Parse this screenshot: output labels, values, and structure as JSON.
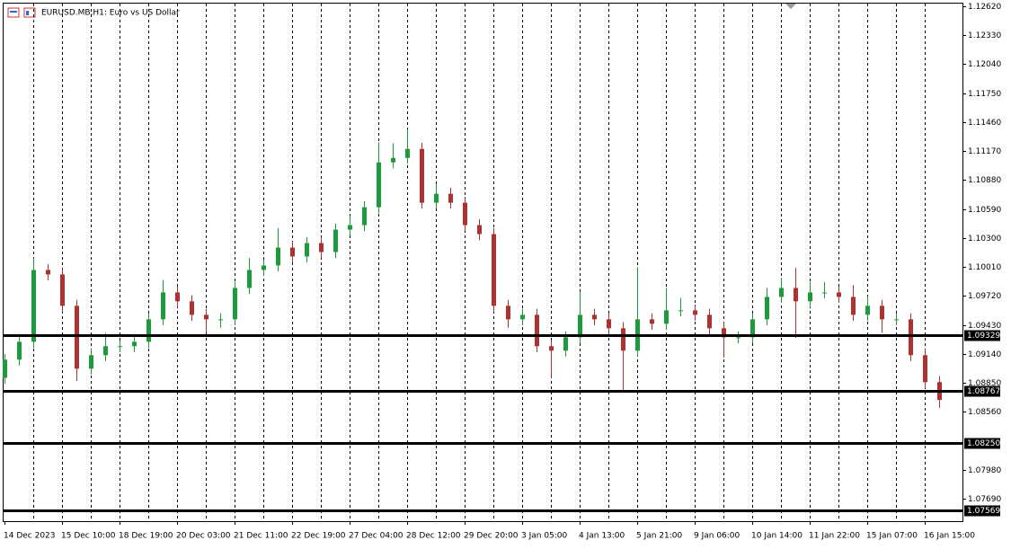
{
  "chart_data": {
    "type": "candlestick",
    "title": "EURUSD.MB,H1:  Euro vs US Dollar",
    "categories": [
      "14 Dec 2023",
      null,
      null,
      null,
      "15 Dec 10:00",
      null,
      null,
      null,
      "18 Dec 19:00",
      null,
      null,
      null,
      "20 Dec 03:00",
      null,
      null,
      null,
      "21 Dec 11:00",
      null,
      null,
      null,
      "22 Dec 19:00",
      null,
      null,
      null,
      "27 Dec 04:00",
      null,
      null,
      null,
      "28 Dec 12:00",
      null,
      null,
      null,
      "29 Dec 20:00",
      null,
      null,
      null,
      "3 Jan 05:00",
      null,
      null,
      null,
      "4 Jan 13:00",
      null,
      null,
      null,
      "5 Jan 21:00",
      null,
      null,
      null,
      "9 Jan 06:00",
      null,
      null,
      null,
      "10 Jan 14:00",
      null,
      null,
      null,
      "11 Jan 22:00",
      null,
      null,
      null,
      "15 Jan 07:00",
      null,
      null,
      null,
      "16 Jan 15:00",
      null
    ],
    "open": [
      1.089,
      1.09082,
      1.09261,
      1.0998,
      1.09935,
      1.09621,
      1.08992,
      1.09127,
      1.09217,
      1.09217,
      1.09261,
      1.09486,
      1.09755,
      1.09666,
      1.09531,
      1.09486,
      1.09486,
      1.098,
      1.0998,
      1.10025,
      1.10204,
      1.10115,
      1.10249,
      1.10159,
      1.10384,
      1.10429,
      1.10608,
      1.11057,
      1.11102,
      1.11192,
      1.10653,
      1.10743,
      1.10653,
      1.10429,
      1.10339,
      1.09621,
      1.09486,
      1.09531,
      1.09217,
      1.09172,
      1.09306,
      1.09531,
      1.09486,
      1.09396,
      1.09172,
      1.09486,
      1.09441,
      1.09576,
      1.09576,
      1.09531,
      1.09396,
      1.09306,
      1.09306,
      1.09486,
      1.0971,
      1.098,
      1.09666,
      1.09755,
      1.09755,
      1.0971,
      1.09531,
      1.09621,
      1.09486,
      1.09486,
      1.09127,
      1.08857
    ],
    "high": [
      1.09142,
      1.09321,
      1.101,
      1.1004,
      1.09995,
      1.09681,
      1.09187,
      1.0935,
      1.09277,
      1.09321,
      1.09546,
      1.0988,
      1.09815,
      1.09726,
      1.09591,
      1.09546,
      1.0986,
      1.101,
      1.10085,
      1.104,
      1.10264,
      1.10309,
      1.10309,
      1.10444,
      1.1052,
      1.10668,
      1.1126,
      1.1125,
      1.1139,
      1.11252,
      1.1084,
      1.10803,
      1.10713,
      1.10489,
      1.10399,
      1.09681,
      1.09591,
      1.09591,
      1.09277,
      1.09366,
      1.0976,
      1.09591,
      1.09546,
      1.09456,
      1.1001,
      1.09546,
      1.098,
      1.097,
      1.09636,
      1.09591,
      1.09456,
      1.09366,
      1.09546,
      1.098,
      1.099,
      1.1,
      1.0986,
      1.0986,
      1.09815,
      1.0983,
      1.0972,
      1.09681,
      1.09546,
      1.09546,
      1.09187,
      1.08917
    ],
    "low": [
      1.0884,
      1.09022,
      1.09201,
      1.09875,
      1.09561,
      1.0887,
      1.08932,
      1.09067,
      1.09157,
      1.09157,
      1.09201,
      1.09426,
      1.09606,
      1.09471,
      1.0935,
      1.094,
      1.09426,
      1.0974,
      1.0992,
      1.09965,
      1.10055,
      1.10055,
      1.10099,
      1.10099,
      1.10324,
      1.10369,
      1.10548,
      1.10997,
      1.11042,
      1.10593,
      1.10593,
      1.10593,
      1.10369,
      1.10279,
      1.09561,
      1.094,
      1.09426,
      1.09157,
      1.089,
      1.09112,
      1.09246,
      1.09426,
      1.09336,
      1.0877,
      1.09112,
      1.09381,
      1.09381,
      1.09516,
      1.09471,
      1.09336,
      1.091,
      1.09246,
      1.09246,
      1.09426,
      1.0965,
      1.093,
      1.09606,
      1.09695,
      1.0965,
      1.09471,
      1.09471,
      1.0935,
      1.09426,
      1.09067,
      1.08797,
      1.086
    ],
    "close": [
      1.09082,
      1.09261,
      1.0998,
      1.09935,
      1.09621,
      1.08992,
      1.09127,
      1.09217,
      1.09217,
      1.09261,
      1.09486,
      1.09755,
      1.09666,
      1.09531,
      1.09486,
      1.09486,
      1.098,
      1.0998,
      1.10025,
      1.10204,
      1.10115,
      1.10249,
      1.10159,
      1.10384,
      1.10429,
      1.10608,
      1.11057,
      1.11102,
      1.11192,
      1.10653,
      1.10743,
      1.10653,
      1.10429,
      1.10339,
      1.09621,
      1.09486,
      1.09531,
      1.09217,
      1.09172,
      1.09306,
      1.09531,
      1.09486,
      1.09396,
      1.09172,
      1.09486,
      1.09441,
      1.09576,
      1.09576,
      1.09531,
      1.09396,
      1.09306,
      1.09306,
      1.09486,
      1.0971,
      1.098,
      1.09666,
      1.09755,
      1.09755,
      1.0971,
      1.09531,
      1.09621,
      1.09486,
      1.09486,
      1.09127,
      1.08857,
      1.08678
    ],
    "up_color": "#1f9a3a",
    "down_color": "#b03030",
    "ylim": [
      1.07465,
      1.12647
    ],
    "yticks": [
      {
        "value": 1.1262,
        "label": "1.12620"
      },
      {
        "value": 1.1233,
        "label": "1.12330"
      },
      {
        "value": 1.1204,
        "label": "1.12040"
      },
      {
        "value": 1.1175,
        "label": "1.11750"
      },
      {
        "value": 1.1146,
        "label": "1.11460"
      },
      {
        "value": 1.1117,
        "label": "1.11170"
      },
      {
        "value": 1.1088,
        "label": "1.10880"
      },
      {
        "value": 1.1059,
        "label": "1.10590"
      },
      {
        "value": 1.103,
        "label": "1.10300"
      },
      {
        "value": 1.1001,
        "label": "1.10010"
      },
      {
        "value": 1.0972,
        "label": "1.09720"
      },
      {
        "value": 1.0943,
        "label": "1.09430"
      },
      {
        "value": 1.0914,
        "label": "1.09140"
      },
      {
        "value": 1.0885,
        "label": "1.08850"
      },
      {
        "value": 1.0856,
        "label": "1.08560"
      },
      {
        "value": 1.0798,
        "label": "1.07980"
      },
      {
        "value": 1.0769,
        "label": "1.07690"
      }
    ],
    "levels": [
      1.09329,
      1.08767,
      {
        "value": 1.0825,
        "label": "1.08250"
      },
      1.07569
    ],
    "grid": true
  }
}
